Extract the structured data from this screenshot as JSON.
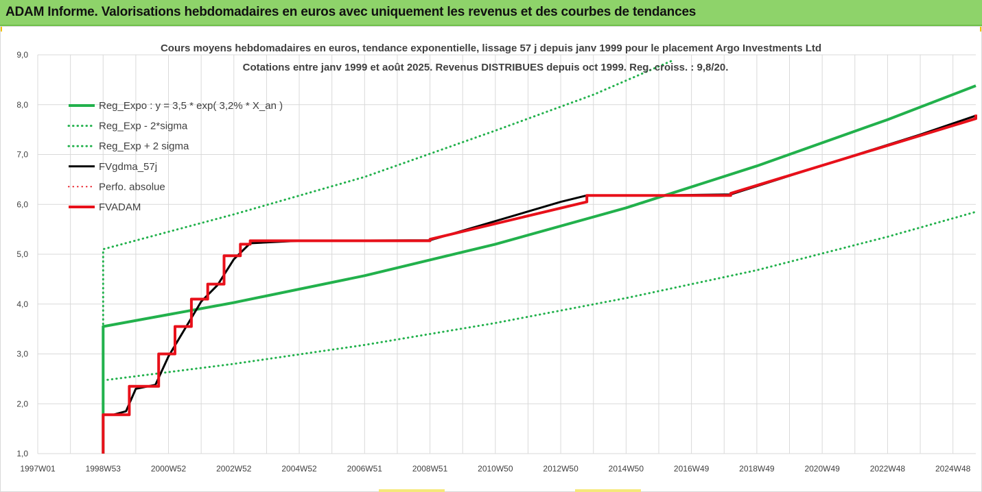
{
  "header": {
    "title": "ADAM Informe. Valorisations hebdomadaires en euros avec uniquement les revenus et des courbes de tendances"
  },
  "colors": {
    "header_bg": "#8ed36a",
    "green": "#22b14c",
    "red": "#e8101a",
    "black": "#000000"
  },
  "chart_data": {
    "type": "line",
    "title_line1": "Cours moyens hebdomadaires en euros, tendance exponentielle, lissage 57 j depuis janv 1999 pour le placement Argo Investments Ltd",
    "title_line2": "Cotations entre janv 1999 et août 2025. Revenus DISTRIBUES depuis oct 1999. Reg. croiss. : 9,8/20.",
    "xlabel": "",
    "ylabel": "",
    "xlim": [
      1997.0,
      2025.7
    ],
    "ylim": [
      1.0,
      9.0
    ],
    "x_ticks": [
      {
        "label": "1997W01",
        "x": 1997.0
      },
      {
        "label": "1998W53",
        "x": 1999.0
      },
      {
        "label": "2000W52",
        "x": 2001.0
      },
      {
        "label": "2002W52",
        "x": 2003.0
      },
      {
        "label": "2004W52",
        "x": 2005.0
      },
      {
        "label": "2006W51",
        "x": 2007.0
      },
      {
        "label": "2008W51",
        "x": 2009.0
      },
      {
        "label": "2010W50",
        "x": 2011.0
      },
      {
        "label": "2012W50",
        "x": 2013.0
      },
      {
        "label": "2014W50",
        "x": 2015.0
      },
      {
        "label": "2016W49",
        "x": 2017.0
      },
      {
        "label": "2018W49",
        "x": 2019.0
      },
      {
        "label": "2020W49",
        "x": 2021.0
      },
      {
        "label": "2022W48",
        "x": 2023.0
      },
      {
        "label": "2024W48",
        "x": 2025.0
      }
    ],
    "y_ticks": [
      "1,0",
      "2,0",
      "3,0",
      "4,0",
      "5,0",
      "6,0",
      "7,0",
      "8,0",
      "9,0"
    ],
    "y_tick_values": [
      1,
      2,
      3,
      4,
      5,
      6,
      7,
      8,
      9
    ],
    "grid": true,
    "legend_position": "top-left",
    "series": [
      {
        "name": "Reg_Expo : y = 3,5 * exp( 3,2% *  X_an )",
        "color": "#22b14c",
        "style": "solid",
        "width": 4,
        "x": [
          1999.0,
          1999.0,
          2003.0,
          2007.0,
          2011.0,
          2015.0,
          2019.0,
          2023.0,
          2025.7
        ],
        "y": [
          1.0,
          3.55,
          4.03,
          4.57,
          5.2,
          5.93,
          6.77,
          7.7,
          8.38
        ]
      },
      {
        "name": "Reg_Exp - 2*sigma",
        "color": "#22b14c",
        "style": "dotted",
        "width": 3,
        "x": [
          1999.0,
          2003.0,
          2007.0,
          2011.0,
          2015.0,
          2019.0,
          2023.0,
          2025.7
        ],
        "y": [
          2.47,
          2.8,
          3.18,
          3.62,
          4.12,
          4.68,
          5.35,
          5.85
        ]
      },
      {
        "name": "Reg_Exp + 2 sigma",
        "color": "#22b14c",
        "style": "dotted",
        "width": 3,
        "x": [
          1999.0,
          1999.0,
          2003.0,
          2007.0,
          2011.0,
          2014.0,
          2016.4
        ],
        "y": [
          3.6,
          5.1,
          5.8,
          6.55,
          7.48,
          8.2,
          8.88
        ]
      },
      {
        "name": "FVgdma_57j",
        "color": "#000000",
        "style": "solid",
        "width": 3,
        "x": [
          1999.0,
          1999.3,
          1999.7,
          2000.0,
          2000.6,
          2001.0,
          2001.5,
          2002.0,
          2002.5,
          2003.0,
          2003.5,
          2005.0,
          2009.0,
          2013.0,
          2013.8,
          2016.0,
          2018.2,
          2021.0,
          2024.0,
          2025.7
        ],
        "y": [
          1.78,
          1.78,
          1.85,
          2.3,
          2.38,
          2.95,
          3.5,
          4.05,
          4.38,
          4.9,
          5.22,
          5.27,
          5.28,
          6.05,
          6.18,
          6.18,
          6.2,
          6.78,
          7.4,
          7.78
        ]
      },
      {
        "name": "Perfo. absolue",
        "color": "#e8101a",
        "style": "dotted",
        "width": 2,
        "x": [],
        "y": []
      },
      {
        "name": "FVADAM",
        "color": "#e8101a",
        "style": "solid",
        "width": 4,
        "x": [
          1999.0,
          1999.0,
          1999.0,
          1999.8,
          1999.8,
          2000.7,
          2000.7,
          2001.2,
          2001.2,
          2001.7,
          2001.7,
          2002.2,
          2002.2,
          2002.7,
          2002.7,
          2003.2,
          2003.2,
          2003.5,
          2003.5,
          2009.0,
          2009.0,
          2013.8,
          2013.8,
          2018.2,
          2018.2,
          2025.7,
          2025.7
        ],
        "y": [
          1.0,
          1.78,
          1.78,
          1.78,
          2.35,
          2.35,
          3.0,
          3.0,
          3.55,
          3.55,
          4.1,
          4.1,
          4.4,
          4.4,
          4.97,
          4.97,
          5.2,
          5.2,
          5.27,
          5.27,
          5.3,
          6.05,
          6.18,
          6.18,
          6.22,
          7.72,
          7.8
        ]
      }
    ]
  }
}
